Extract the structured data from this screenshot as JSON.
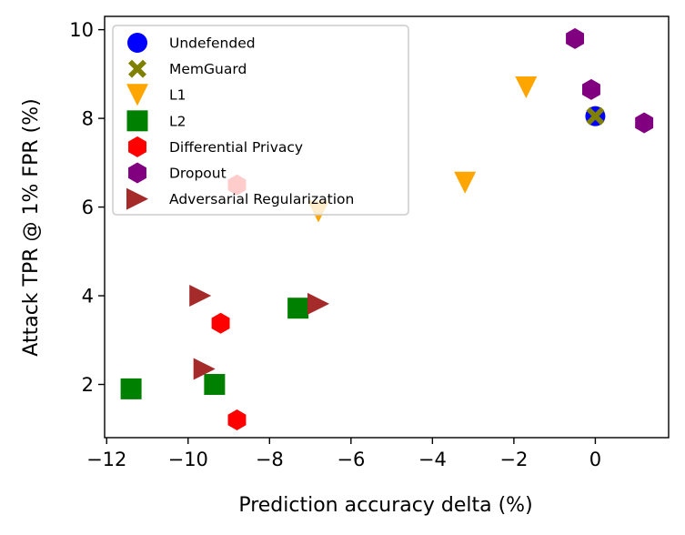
{
  "chart_data": {
    "type": "scatter",
    "title": "",
    "xlabel": "Prediction accuracy delta (%)",
    "ylabel": "Attack TPR @ 1% FPR (%)",
    "xlim": [
      -12.05,
      1.8
    ],
    "ylim": [
      0.8,
      10.3
    ],
    "x_ticks": [
      -12,
      -10,
      -8,
      -6,
      -4,
      -2,
      0
    ],
    "x_tick_labels": [
      "−12",
      "−10",
      "−8",
      "−6",
      "−4",
      "−2",
      "0"
    ],
    "y_ticks": [
      2,
      4,
      6,
      8,
      10
    ],
    "y_tick_labels": [
      "2",
      "4",
      "6",
      "8",
      "10"
    ],
    "grid": false,
    "legend_position": "top-left",
    "series": [
      {
        "name": "Undefended",
        "marker": "circle",
        "color": "#0000ff",
        "points": [
          {
            "x": 0.0,
            "y": 8.05
          }
        ]
      },
      {
        "name": "MemGuard",
        "marker": "x-cross",
        "color": "#808000",
        "points": [
          {
            "x": 0.0,
            "y": 8.05
          }
        ]
      },
      {
        "name": "L1",
        "marker": "triangle-down",
        "color": "#ffa500",
        "points": [
          {
            "x": -1.7,
            "y": 8.7
          },
          {
            "x": -3.2,
            "y": 6.55
          },
          {
            "x": -6.8,
            "y": 5.9
          }
        ]
      },
      {
        "name": "L2",
        "marker": "square",
        "color": "#008000",
        "points": [
          {
            "x": -11.4,
            "y": 1.9
          },
          {
            "x": -9.35,
            "y": 2.0
          },
          {
            "x": -7.3,
            "y": 3.72
          }
        ]
      },
      {
        "name": "Differential Privacy",
        "marker": "hexagon",
        "color": "#ff0000",
        "points": [
          {
            "x": -8.8,
            "y": 6.5
          },
          {
            "x": -9.2,
            "y": 3.38
          },
          {
            "x": -8.8,
            "y": 1.2
          }
        ]
      },
      {
        "name": "Dropout",
        "marker": "hexagon",
        "color": "#800080",
        "points": [
          {
            "x": -0.5,
            "y": 9.8
          },
          {
            "x": -0.1,
            "y": 8.65
          },
          {
            "x": 1.2,
            "y": 7.9
          }
        ]
      },
      {
        "name": "Adversarial Regularization",
        "marker": "triangle-right",
        "color": "#a52a2a",
        "points": [
          {
            "x": -9.7,
            "y": 4.0
          },
          {
            "x": -9.6,
            "y": 2.35
          },
          {
            "x": -6.8,
            "y": 3.82
          }
        ]
      }
    ]
  }
}
